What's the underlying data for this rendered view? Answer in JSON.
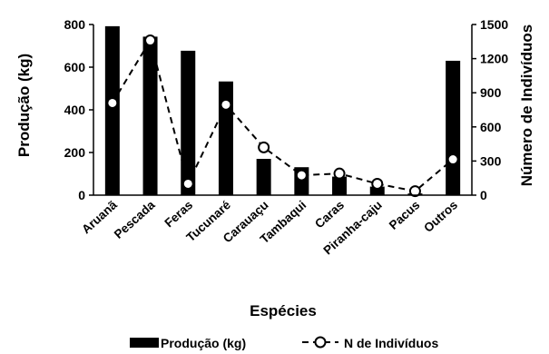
{
  "chart_data": {
    "type": "bar",
    "categories": [
      "Aruanã",
      "Pescada",
      "Feras",
      "Tucunaré",
      "Carauaçu",
      "Tambaqui",
      "Caras",
      "Piranha-caju",
      "Pacus",
      "Outros"
    ],
    "series": [
      {
        "name": "Produção (kg)",
        "type": "bar",
        "axis": "left",
        "color": "#000000",
        "values": [
          792,
          743,
          677,
          533,
          170,
          131,
          87,
          40,
          8,
          630
        ]
      },
      {
        "name": "N de Indivíduos",
        "type": "line",
        "axis": "right",
        "color": "#000000",
        "line_style": "dashed",
        "marker": "open-circle",
        "values": [
          810,
          1360,
          100,
          795,
          420,
          175,
          190,
          100,
          35,
          315
        ]
      }
    ],
    "xlabel": "Espécies",
    "ylabel": "Produção (kg)",
    "y2label": "Número de Indivíduos",
    "ylim": [
      0,
      800
    ],
    "yticks": [
      "0",
      "200",
      "400",
      "600",
      "800"
    ],
    "y2lim": [
      0,
      1500
    ],
    "y2ticks": [
      "0",
      "300",
      "600",
      "900",
      "1200",
      "1500"
    ],
    "legend_position": "bottom",
    "legend": {
      "bar_label": "Produção (kg)",
      "line_label": "N de Indivíduos"
    },
    "grid": false
  }
}
